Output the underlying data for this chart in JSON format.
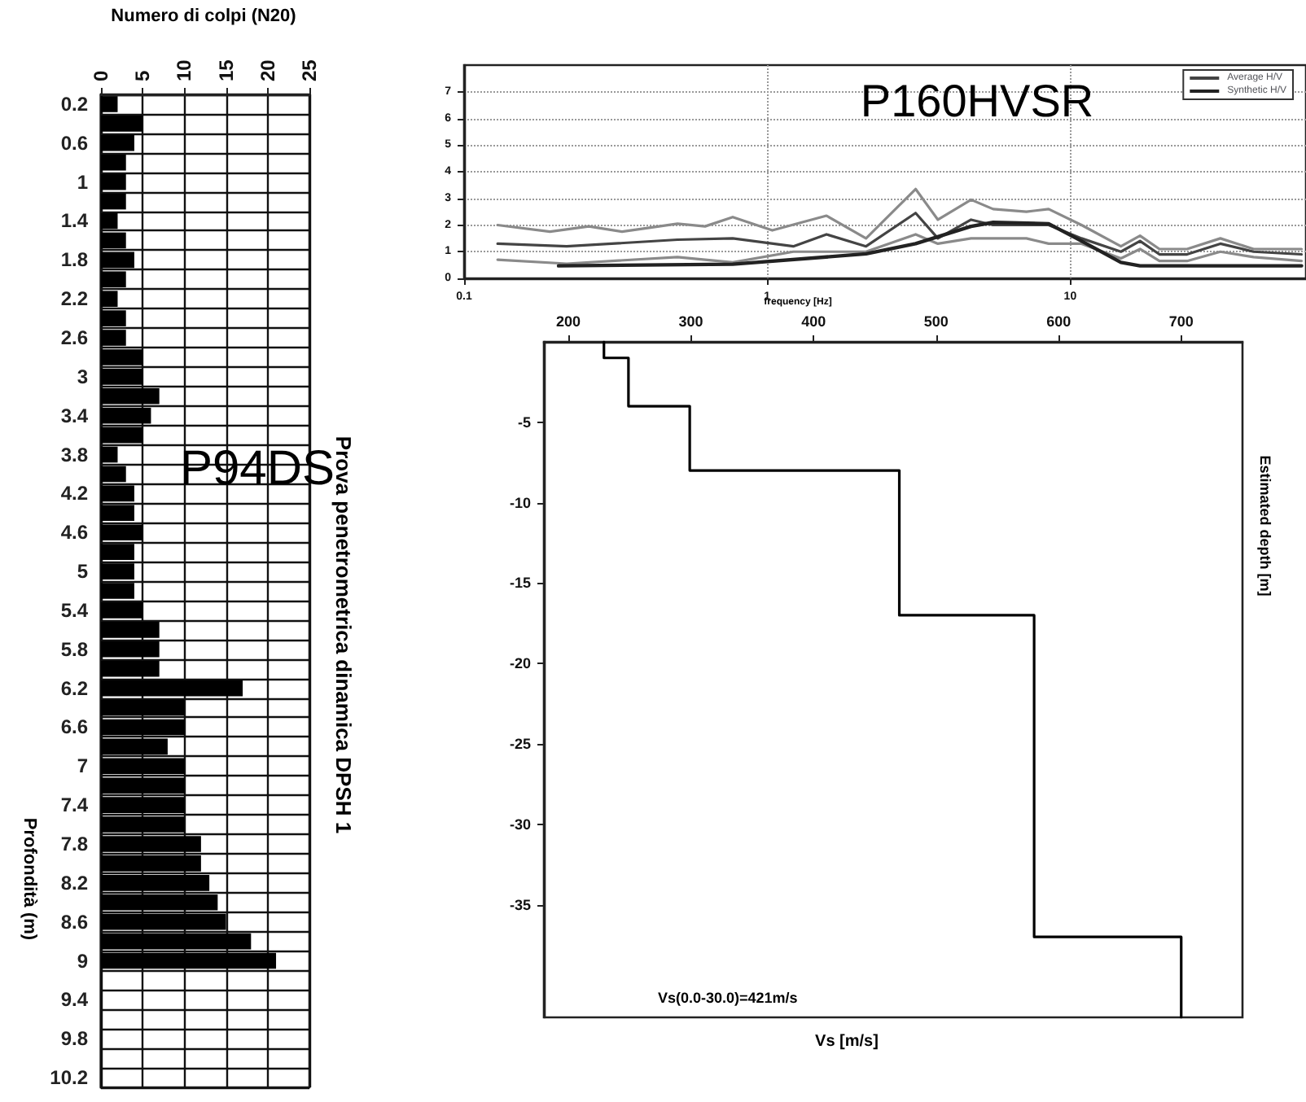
{
  "chart_data": [
    {
      "type": "bar",
      "orientation": "horizontal",
      "xlabel": "Numero di colpi (N20)",
      "ylabel": "Profondità (m)",
      "categories": [
        "0.2",
        null,
        "0.6",
        null,
        "1",
        null,
        "1.4",
        null,
        "1.8",
        null,
        "2.2",
        null,
        "2.6",
        null,
        "3",
        null,
        "3.4",
        null,
        "3.8",
        null,
        "4.2",
        null,
        "4.6",
        null,
        "5",
        null,
        "5.4",
        null,
        "5.8",
        null,
        "6.2",
        null,
        "6.6",
        null,
        "7",
        null,
        "7.4",
        null,
        "7.8",
        null,
        "8.2",
        null,
        "8.6",
        null,
        "9",
        null,
        "9.4",
        null,
        "9.8",
        null,
        "10.2"
      ],
      "values": [
        2,
        5,
        4,
        3,
        3,
        3,
        2,
        3,
        4,
        3,
        2,
        3,
        3,
        5,
        5,
        7,
        6,
        5,
        2,
        3,
        4,
        4,
        5,
        4,
        4,
        4,
        5,
        7,
        7,
        7,
        17,
        10,
        10,
        8,
        10,
        10,
        10,
        10,
        12,
        12,
        13,
        14,
        15,
        18,
        21,
        null,
        null,
        null,
        null,
        null,
        null
      ],
      "color": "#000000",
      "xlim": [
        0,
        25
      ],
      "xticks": [
        0,
        5,
        10,
        15,
        20,
        25
      ],
      "grid": true,
      "annotations": [
        "P94DS",
        "Prova penetrometrica dinamica DPSH 1"
      ]
    },
    {
      "type": "line",
      "log": "x",
      "xlabel": "frequency [Hz]",
      "xlim": [
        0.1,
        60
      ],
      "xticks": [
        0.1,
        1,
        10
      ],
      "ylim": [
        0,
        8
      ],
      "yticks": [
        0,
        1,
        2,
        3,
        4,
        5,
        6,
        7
      ],
      "grid": true,
      "legend": "top right",
      "annotations": [
        "P160HVSR"
      ],
      "series": [
        {
          "color": "#8a8a8a",
          "x": [
            0.129,
            0.192,
            0.258,
            0.332,
            0.506,
            0.624,
            0.77,
            1.04,
            1.57,
            2.12,
            3.09,
            3.66,
            4.71,
            5.57,
            7.17,
            8.49,
            10.9,
            14.7,
            17.0,
            19.7,
            24.3,
            31.3,
            40.3,
            58
          ],
          "values": [
            2.0,
            1.75,
            1.95,
            1.75,
            2.05,
            1.95,
            2.3,
            1.8,
            2.35,
            1.5,
            3.35,
            2.2,
            2.95,
            2.6,
            2.5,
            2.6,
            2.0,
            1.2,
            1.6,
            1.1,
            1.1,
            1.5,
            1.1,
            1.1
          ]
        },
        {
          "name": "Average H/V",
          "color": "#444444",
          "x": [
            0.129,
            0.218,
            0.506,
            0.77,
            1.22,
            1.57,
            2.12,
            3.09,
            3.66,
            4.71,
            5.57,
            7.17,
            8.49,
            10.9,
            14.7,
            17.0,
            19.7,
            24.3,
            31.3,
            40.3,
            58
          ],
          "values": [
            1.3,
            1.2,
            1.45,
            1.5,
            1.2,
            1.65,
            1.2,
            2.45,
            1.5,
            2.2,
            2.0,
            2.0,
            2.0,
            1.5,
            1.0,
            1.4,
            0.9,
            0.9,
            1.3,
            1.0,
            0.9
          ]
        },
        {
          "color": "#8a8a8a",
          "x": [
            0.129,
            0.218,
            0.506,
            0.77,
            1.22,
            2.12,
            3.09,
            3.66,
            4.71,
            7.17,
            8.49,
            10.9,
            14.7,
            17.0,
            19.7,
            24.3,
            31.3,
            40.3,
            58
          ],
          "values": [
            0.7,
            0.55,
            0.8,
            0.6,
            1.0,
            1.0,
            1.65,
            1.3,
            1.5,
            1.5,
            1.3,
            1.3,
            0.75,
            1.1,
            0.65,
            0.65,
            1.0,
            0.8,
            0.65
          ]
        },
        {
          "name": "Synthetic H/V",
          "color": "#222222",
          "x": [
            0.205,
            0.77,
            2.12,
            3.09,
            4.71,
            5.57,
            8.49,
            10.9,
            14.7,
            17.0,
            58
          ],
          "values": [
            0.47,
            0.53,
            0.92,
            1.3,
            1.95,
            2.1,
            2.05,
            1.4,
            0.6,
            0.47,
            0.47
          ]
        }
      ]
    },
    {
      "type": "line",
      "xlabel": "Vs [m/s]",
      "ylabel": "Estimated depth [m]",
      "xlim": [
        180,
        750
      ],
      "xticks": [
        200,
        300,
        400,
        500,
        600,
        700
      ],
      "ylim": [
        -42,
        0
      ],
      "yticks": [
        -5,
        -10,
        -15,
        -20,
        -25,
        -30,
        -35
      ],
      "annotations": [
        "Vs(0.0-30.0)=421m/s"
      ],
      "series": [
        {
          "color": "#000000",
          "x": [
            229,
            229,
            249,
            249,
            299,
            299,
            470,
            470,
            580,
            580,
            700,
            700
          ],
          "values": [
            0,
            -1,
            -1,
            -4,
            -4,
            -8,
            -8,
            -17,
            -17,
            -37,
            -37,
            -42
          ]
        }
      ]
    }
  ]
}
